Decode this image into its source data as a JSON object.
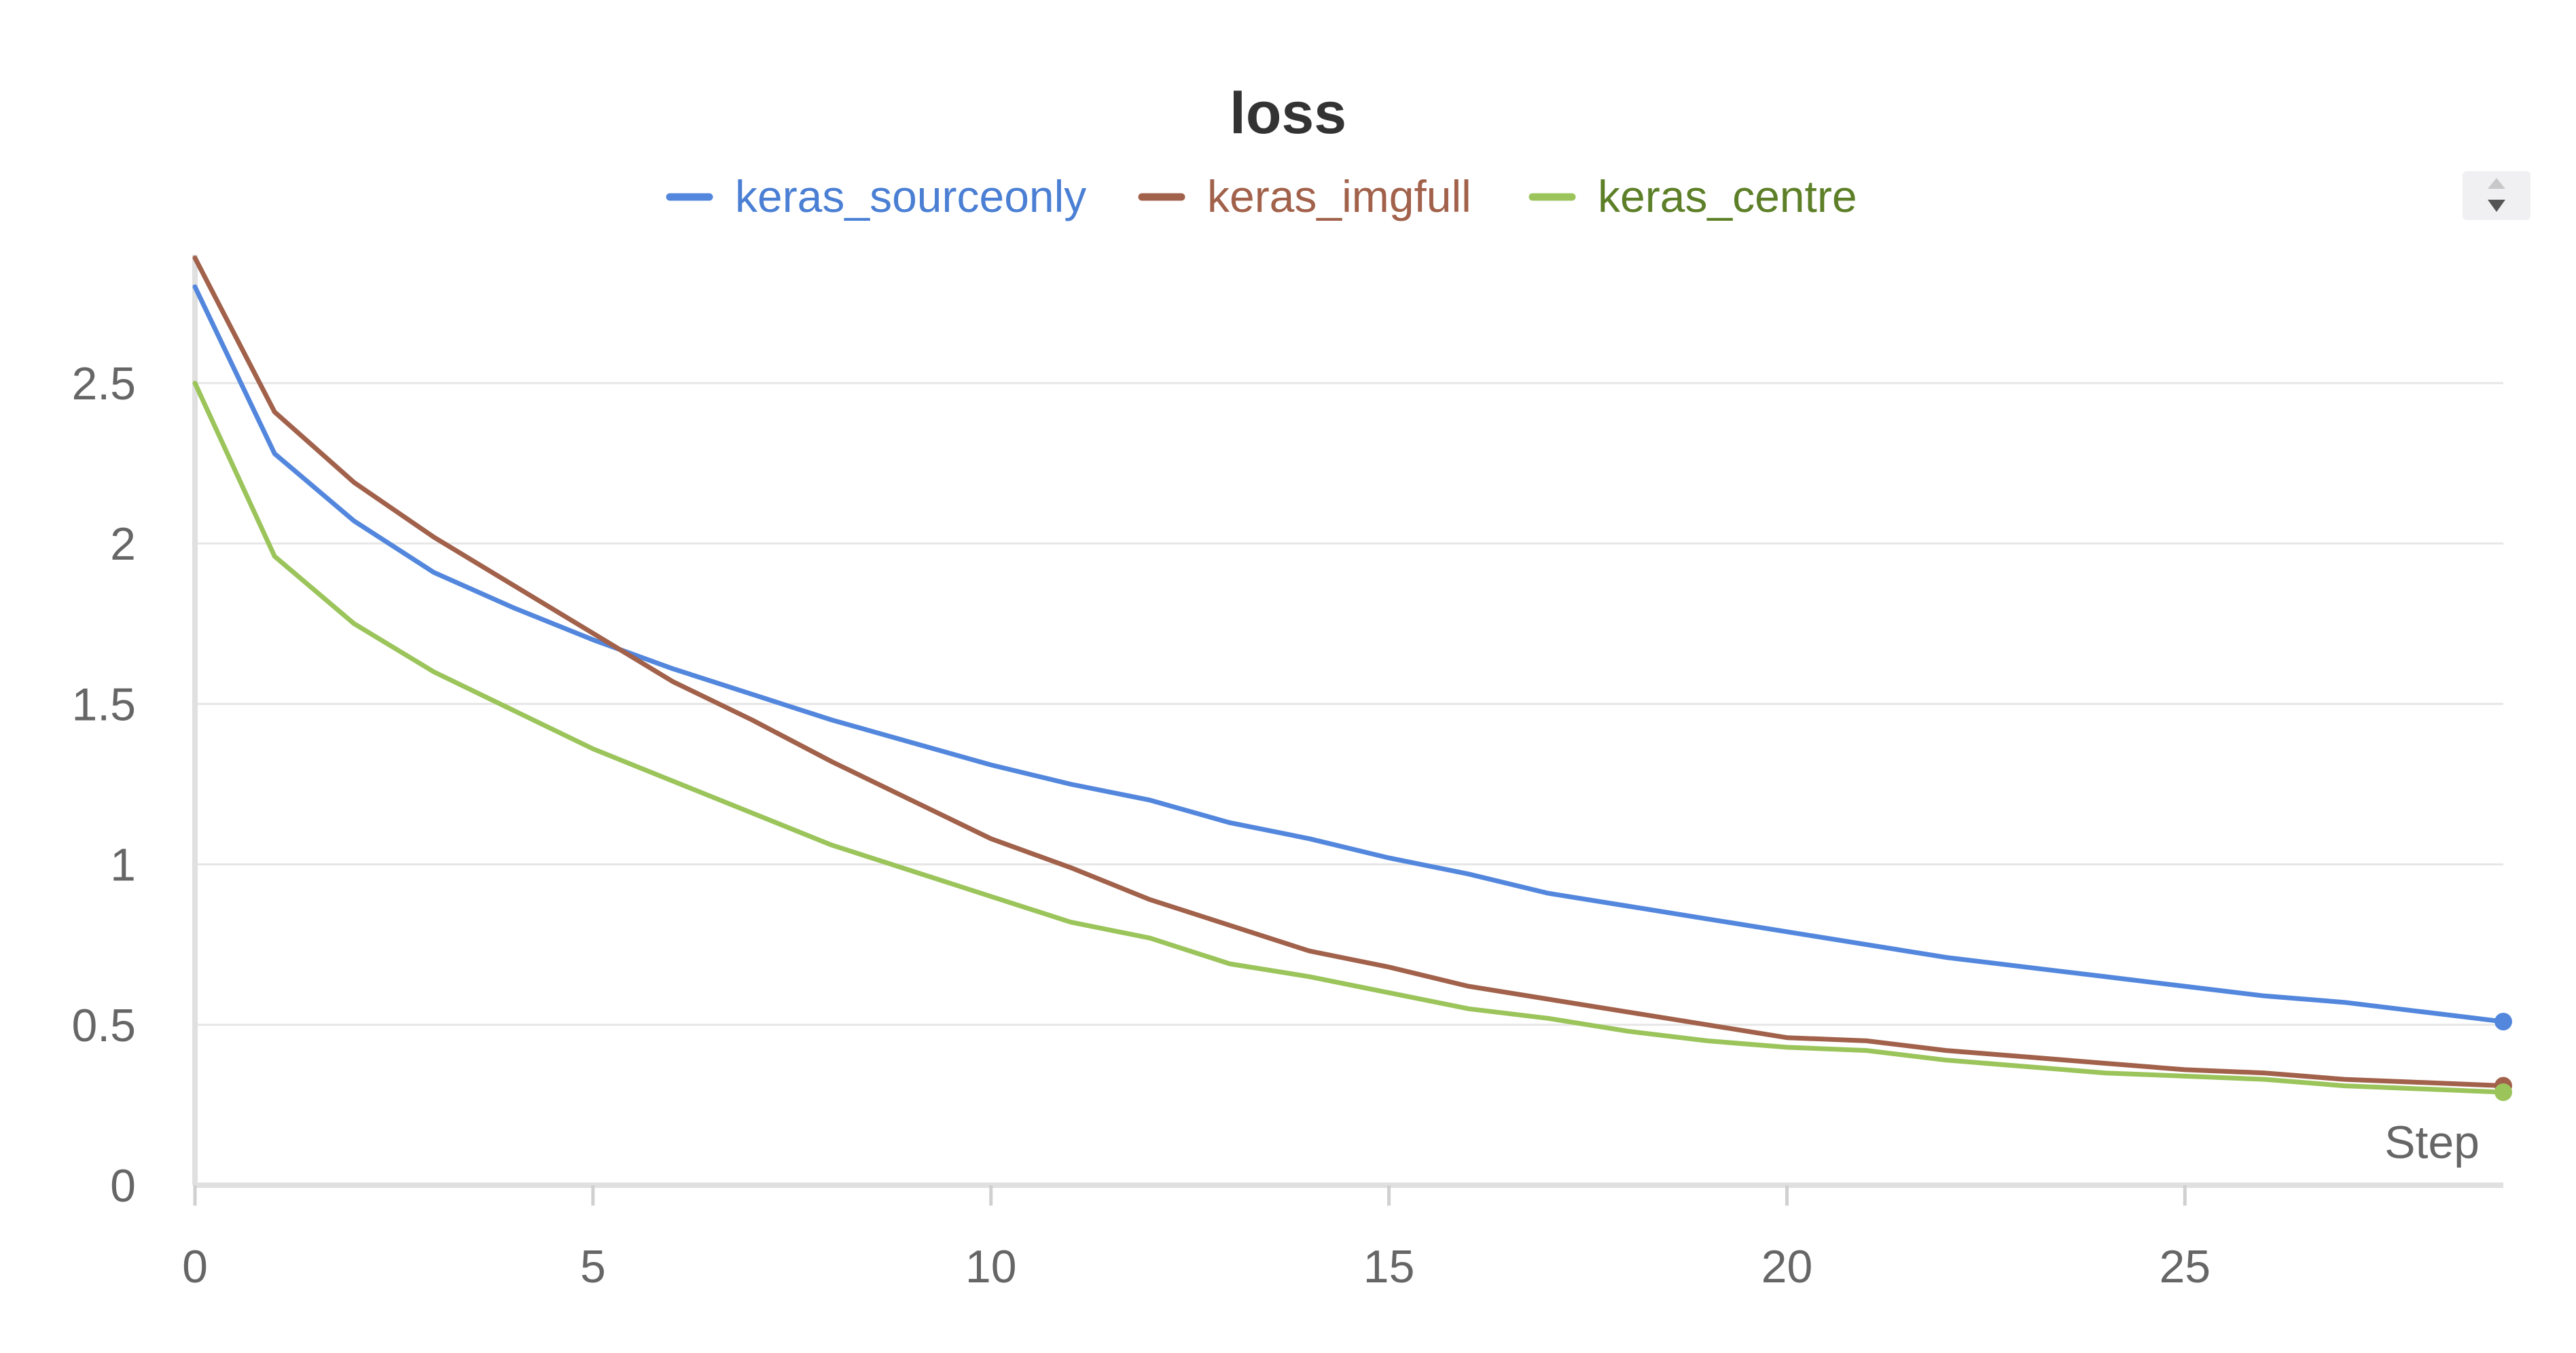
{
  "chart_data": {
    "type": "line",
    "title": "loss",
    "xlabel": "Step",
    "ylabel": "",
    "xlim": [
      0,
      29
    ],
    "ylim": [
      0,
      2.9
    ],
    "xticks": [
      0,
      5,
      10,
      15,
      20,
      25
    ],
    "yticks": [
      0,
      0.5,
      1,
      1.5,
      2,
      2.5
    ],
    "xtick_labels": [
      "0",
      "5",
      "10",
      "15",
      "20",
      "25"
    ],
    "ytick_labels": [
      "0",
      "0.5",
      "1",
      "1.5",
      "2",
      "2.5"
    ],
    "grid": true,
    "legend_position": "top-center",
    "x": [
      0,
      1,
      2,
      3,
      4,
      5,
      6,
      7,
      8,
      9,
      10,
      11,
      12,
      13,
      14,
      15,
      16,
      17,
      18,
      19,
      20,
      21,
      22,
      23,
      24,
      25,
      26,
      27,
      28,
      29
    ],
    "series": [
      {
        "name": "keras_sourceonly",
        "color": "#5387dd",
        "label_color": "#4a7fd4",
        "values": [
          2.8,
          2.28,
          2.07,
          1.91,
          1.8,
          1.7,
          1.61,
          1.53,
          1.45,
          1.38,
          1.31,
          1.25,
          1.2,
          1.13,
          1.08,
          1.02,
          0.97,
          0.91,
          0.87,
          0.83,
          0.79,
          0.75,
          0.71,
          0.68,
          0.65,
          0.62,
          0.59,
          0.57,
          0.54,
          0.51
        ]
      },
      {
        "name": "keras_imgfull",
        "color": "#a1614a",
        "label_color": "#a1614a",
        "values": [
          2.89,
          2.41,
          2.19,
          2.02,
          1.87,
          1.72,
          1.57,
          1.45,
          1.32,
          1.2,
          1.08,
          0.99,
          0.89,
          0.81,
          0.73,
          0.68,
          0.62,
          0.58,
          0.54,
          0.5,
          0.46,
          0.45,
          0.42,
          0.4,
          0.38,
          0.36,
          0.35,
          0.33,
          0.32,
          0.31
        ]
      },
      {
        "name": "keras_centre",
        "color": "#9bc45b",
        "label_color": "#5c7f27",
        "values": [
          2.5,
          1.96,
          1.75,
          1.6,
          1.48,
          1.36,
          1.26,
          1.16,
          1.06,
          0.98,
          0.9,
          0.82,
          0.77,
          0.69,
          0.65,
          0.6,
          0.55,
          0.52,
          0.48,
          0.45,
          0.43,
          0.42,
          0.39,
          0.37,
          0.35,
          0.34,
          0.33,
          0.31,
          0.3,
          0.29
        ]
      }
    ]
  }
}
